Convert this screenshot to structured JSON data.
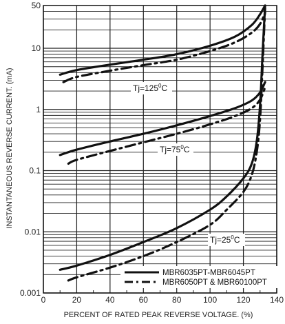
{
  "chart_data": {
    "type": "line",
    "title": "",
    "xlabel": "PERCENT OF RATED PEAK REVERSE VOLTAGE. (%)",
    "ylabel": "INSTANTANEOUS REVERSE CURRENT. (mA)",
    "x_scale": "linear",
    "y_scale": "log",
    "xlim": [
      0,
      140
    ],
    "ylim": [
      0.001,
      50
    ],
    "x_ticks": [
      "0",
      "20",
      "40",
      "60",
      "80",
      "100",
      "120",
      "140"
    ],
    "y_ticks": [
      "0.001",
      "0.01",
      "0.1",
      "1",
      "10",
      "50"
    ],
    "grid": true,
    "legend_position": "bottom-right",
    "annotations": [
      "Tj=125",
      "Tj=75",
      "Tj=25"
    ],
    "annotation_superscript": "0",
    "annotation_unit": "C",
    "series": [
      {
        "name": "MBR6035PT-MBR6045PT",
        "style": "solid",
        "temperature": "125",
        "x": [
          10,
          20,
          40,
          60,
          80,
          100,
          115,
          125,
          130,
          133
        ],
        "y": [
          3.7,
          4.4,
          5.4,
          6.5,
          8.0,
          11,
          15.5,
          24,
          36,
          50
        ]
      },
      {
        "name": "MBR6050PT & MBR60100PT",
        "style": "dashed",
        "temperature": "125",
        "x": [
          12,
          20,
          40,
          60,
          80,
          100,
          115,
          125,
          130,
          133
        ],
        "y": [
          2.8,
          3.4,
          4.3,
          5.3,
          6.5,
          9.0,
          12.5,
          18,
          25,
          38
        ]
      },
      {
        "name": "MBR6035PT-MBR6045PT",
        "style": "solid",
        "temperature": "75",
        "x": [
          10,
          20,
          40,
          60,
          80,
          100,
          115,
          125,
          130,
          133
        ],
        "y": [
          0.18,
          0.22,
          0.3,
          0.4,
          0.55,
          0.78,
          1.05,
          1.4,
          1.9,
          2.8
        ]
      },
      {
        "name": "MBR6050PT & MBR60100PT",
        "style": "dashed",
        "temperature": "75",
        "x": [
          15,
          20,
          40,
          60,
          80,
          100,
          115,
          125,
          130,
          133
        ],
        "y": [
          0.13,
          0.15,
          0.21,
          0.29,
          0.4,
          0.57,
          0.78,
          1.05,
          1.45,
          2.3
        ]
      },
      {
        "name": "MBR6035PT-MBR6045PT",
        "style": "solid",
        "temperature": "25",
        "x": [
          10,
          20,
          40,
          60,
          80,
          100,
          110,
          120,
          125,
          128,
          130,
          131.5,
          133
        ],
        "y": [
          0.0024,
          0.0028,
          0.0042,
          0.0068,
          0.0115,
          0.023,
          0.038,
          0.075,
          0.13,
          0.3,
          1.2,
          8,
          50
        ]
      },
      {
        "name": "MBR6050PT & MBR60100PT",
        "style": "dashed",
        "temperature": "25",
        "x": [
          15,
          20,
          40,
          60,
          80,
          100,
          110,
          120,
          125,
          128,
          130,
          131.5,
          133
        ],
        "y": [
          0.0016,
          0.0018,
          0.0026,
          0.004,
          0.0068,
          0.013,
          0.023,
          0.045,
          0.085,
          0.2,
          0.7,
          5,
          45
        ]
      }
    ]
  }
}
